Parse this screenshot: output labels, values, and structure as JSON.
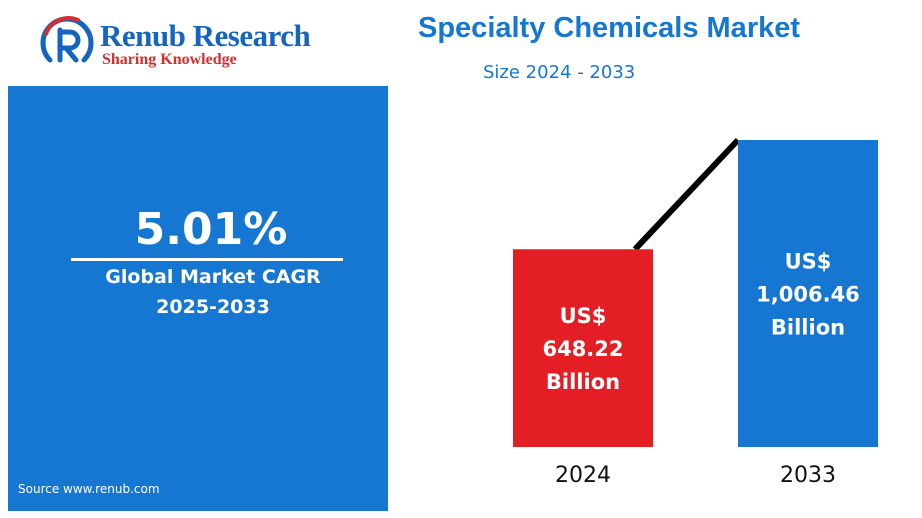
{
  "logo": {
    "name": "Renub Research",
    "tagline": "Sharing Knowledge",
    "colors": {
      "primary": "#1565c0",
      "accent": "#d32f2f"
    }
  },
  "header": {
    "title": "Specialty Chemicals Market",
    "subtitle": "Size 2024 - 2033"
  },
  "cagr": {
    "value": "5.01%",
    "label": "Global Market CAGR",
    "period": "2025-2033"
  },
  "source": "Source  www.renub.com",
  "chart_data": {
    "type": "bar",
    "title": "Specialty Chemicals Market",
    "subtitle": "Size 2024 - 2033",
    "categories": [
      "2024",
      "2033"
    ],
    "values": [
      648.22,
      1006.46
    ],
    "units": "US$ Billion",
    "bar_labels": [
      [
        "US$",
        "648.22",
        "Billion"
      ],
      [
        "US$",
        "1,006.46",
        "Billion"
      ]
    ],
    "bar_colors": [
      "#e31e24",
      "#1677d2"
    ],
    "trend_line": true,
    "grid": false,
    "legend": "none"
  },
  "colors": {
    "brand_blue": "#1677d2",
    "bar_2024": "#e31e24",
    "bar_2033": "#1677d2",
    "trend_line": "#000000"
  }
}
